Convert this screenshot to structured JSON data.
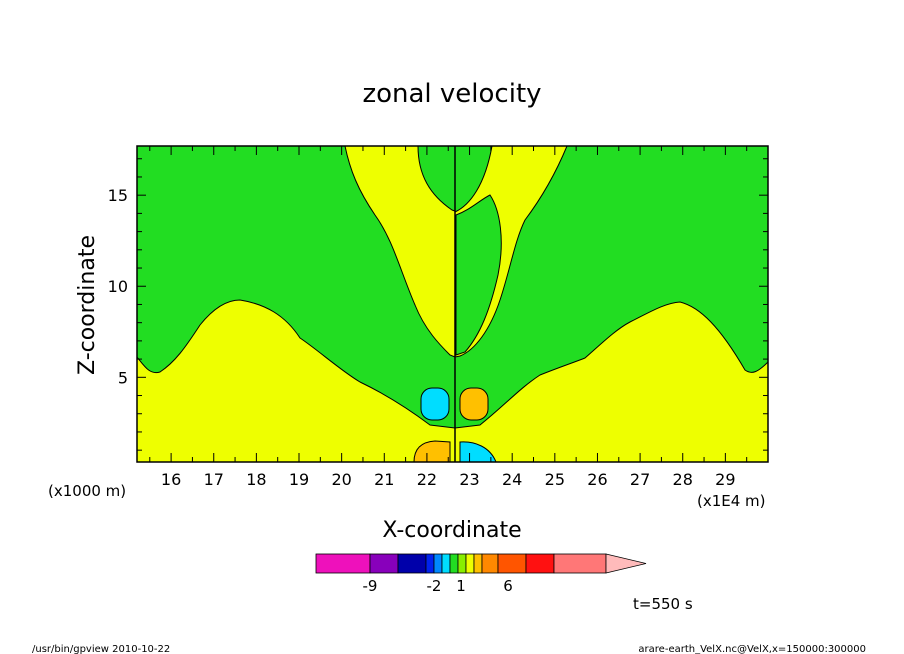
{
  "chart_data": {
    "type": "heatmap",
    "subtype": "filled-contour",
    "title": "zonal velocity",
    "xlabel": "X-coordinate",
    "ylabel": "Z-coordinate",
    "x_offset_label": "(x1000 m)",
    "x_scale_label": "(x1E4 m)",
    "xlim": [
      15.2,
      30.0
    ],
    "ylim": [
      0.35,
      17.7
    ],
    "x_ticks": [
      16,
      17,
      18,
      19,
      20,
      21,
      22,
      23,
      24,
      25,
      26,
      27,
      28,
      29
    ],
    "y_ticks": [
      5,
      10,
      15
    ],
    "time_label": "t=550 s",
    "colors": {
      "green": "#22DD22",
      "yellow": "#EEFF00",
      "cyan": "#00DDFF",
      "orange": "#FFC000",
      "frame": "#000000"
    },
    "colorbar": {
      "segments": [
        "#EE11BB",
        "#8800BB",
        "#0000AA",
        "#0022EE",
        "#0088FF",
        "#00DDFF",
        "#22DD22",
        "#88EE00",
        "#EEFF00",
        "#FFC000",
        "#FF8800",
        "#FF5500",
        "#FF1111",
        "#FF7777"
      ],
      "overflow_color": "#FFBBBB",
      "tick_labels": [
        "-9",
        "-2",
        "1",
        "6"
      ]
    },
    "regions": [
      {
        "value": "positive (0 to 1)",
        "color": "yellow",
        "where": "lower layer of domain and upper central/right areas"
      },
      {
        "value": "negative (-1 to 0)",
        "color": "green",
        "where": "upper left, upper right, and central V-shaped plume"
      },
      {
        "value": "negative (< -1)",
        "color": "cyan",
        "where": "blobs near x=22, z=3.5 and x=23, z=0.5"
      },
      {
        "value": "positive (> 1)",
        "color": "orange",
        "where": "blobs near x=23, z=3.5 and x=22, z=0.5"
      }
    ]
  },
  "footer": {
    "left": "/usr/bin/gpview   2010-10-22",
    "right": "arare-earth_VelX.nc@VelX,x=150000:300000"
  }
}
